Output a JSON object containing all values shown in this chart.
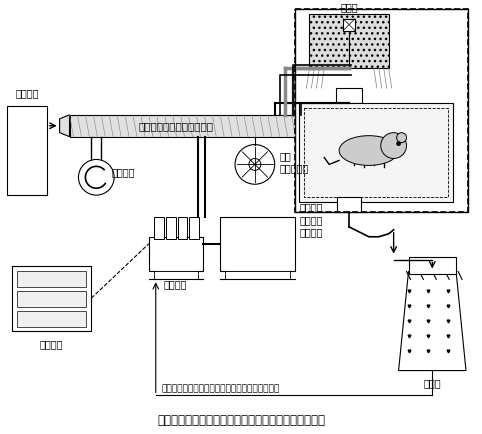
{
  "title": "図２　ディーゼルエンジン排気暴露実験装置の概略図",
  "bg_color": "#ffffff",
  "fg_color": "#000000",
  "fig_width": 4.82,
  "fig_height": 4.34,
  "dpi": 100,
  "labels": {
    "air_cooling": "空冷装置",
    "blower": "ブロアー",
    "dilution_tunnel": "ダイリューショントンネル",
    "particle_sampler_line1": "粒子",
    "particle_sampler_line2": "サンプラー",
    "edyc_line1": "ＥＤＹＣ",
    "edyc_line2": "ダイナモ",
    "edyc_line3": "メーター",
    "engine": "エンジン",
    "control": "制御装置",
    "storage": "貯留槽",
    "cooling_tower": "冷却塔",
    "bottom_label": "エンジン冷却，潤滑油温調，燃料温調整用冷却水"
  }
}
